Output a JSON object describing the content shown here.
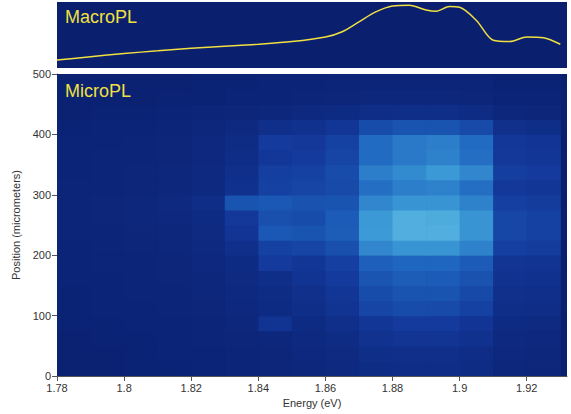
{
  "chart_data": [
    {
      "type": "line",
      "annotation": "MacroPL",
      "color": "#f0e040",
      "tick_labels": false,
      "xlim": [
        1.78,
        1.932
      ],
      "ylim": [
        0,
        1
      ],
      "x": [
        1.78,
        1.79,
        1.8,
        1.81,
        1.82,
        1.83,
        1.84,
        1.85,
        1.86,
        1.865,
        1.87,
        1.875,
        1.88,
        1.885,
        1.89,
        1.893,
        1.897,
        1.9,
        1.905,
        1.91,
        1.915,
        1.92,
        1.925,
        1.93
      ],
      "values": [
        0.12,
        0.17,
        0.22,
        0.26,
        0.3,
        0.33,
        0.36,
        0.4,
        0.47,
        0.55,
        0.7,
        0.85,
        0.94,
        0.95,
        0.88,
        0.86,
        0.93,
        0.92,
        0.72,
        0.42,
        0.4,
        0.47,
        0.46,
        0.36
      ]
    },
    {
      "type": "heatmap",
      "annotation": "MicroPL",
      "xlabel": "Energy (eV)",
      "ylabel": "Position (micrometers)",
      "grid": false,
      "xlim": [
        1.78,
        1.932
      ],
      "ylim": [
        0,
        500
      ],
      "xticks": [
        1.78,
        1.8,
        1.82,
        1.84,
        1.86,
        1.88,
        1.9,
        1.92
      ],
      "yticks": [
        0,
        100,
        200,
        300,
        400,
        500
      ],
      "x_bins": [
        1.78,
        1.79,
        1.8,
        1.81,
        1.82,
        1.83,
        1.84,
        1.85,
        1.86,
        1.87,
        1.88,
        1.89,
        1.9,
        1.91,
        1.92,
        1.93
      ],
      "y_bins": [
        0,
        25,
        50,
        75,
        100,
        125,
        150,
        175,
        200,
        225,
        250,
        275,
        300,
        325,
        350,
        375,
        400,
        425,
        450,
        475,
        500
      ],
      "color_range": [
        0,
        10
      ],
      "cells": [
        [
          0.3,
          0.3,
          0.4,
          0.4,
          0.5,
          0.6,
          0.7,
          0.8,
          1.0,
          1.3,
          1.4,
          1.4,
          1.3,
          0.8,
          0.7
        ],
        [
          0.3,
          0.3,
          0.4,
          0.5,
          0.5,
          0.6,
          0.7,
          0.9,
          1.1,
          1.5,
          1.6,
          1.6,
          1.4,
          0.9,
          0.8
        ],
        [
          0.3,
          0.4,
          0.4,
          0.5,
          0.6,
          0.7,
          0.8,
          1.0,
          1.3,
          1.9,
          2.1,
          2.1,
          1.8,
          1.0,
          0.9
        ],
        [
          0.4,
          0.4,
          0.5,
          0.5,
          0.6,
          0.8,
          2.0,
          1.2,
          1.6,
          2.3,
          2.6,
          2.6,
          2.2,
          1.2,
          1.1
        ],
        [
          0.4,
          0.5,
          0.5,
          0.6,
          0.7,
          0.9,
          1.2,
          1.5,
          2.0,
          3.2,
          3.6,
          3.5,
          3.0,
          1.5,
          1.4
        ],
        [
          0.4,
          0.5,
          0.6,
          0.6,
          0.8,
          1.0,
          1.3,
          1.7,
          2.3,
          3.6,
          4.0,
          4.0,
          3.4,
          1.7,
          1.6
        ],
        [
          0.5,
          0.5,
          0.6,
          0.7,
          0.8,
          1.1,
          1.5,
          2.0,
          2.6,
          4.1,
          4.5,
          4.4,
          3.9,
          1.9,
          1.8
        ],
        [
          0.5,
          0.6,
          0.6,
          0.7,
          0.9,
          1.2,
          2.6,
          2.3,
          2.9,
          4.6,
          5.0,
          5.0,
          4.4,
          2.1,
          2.0
        ],
        [
          0.5,
          0.6,
          0.7,
          0.8,
          1.0,
          1.6,
          3.0,
          3.2,
          3.8,
          6.4,
          7.0,
          7.0,
          6.2,
          2.9,
          2.7
        ],
        [
          0.6,
          0.6,
          0.7,
          0.8,
          1.1,
          2.2,
          4.2,
          4.0,
          4.5,
          7.3,
          8.0,
          8.0,
          7.0,
          3.3,
          3.0
        ],
        [
          0.6,
          0.7,
          0.8,
          0.9,
          1.2,
          2.5,
          3.8,
          3.6,
          4.4,
          7.2,
          8.0,
          7.9,
          7.0,
          3.3,
          3.0
        ],
        [
          0.6,
          0.7,
          0.8,
          1.0,
          1.4,
          4.0,
          4.2,
          3.9,
          4.0,
          6.4,
          7.0,
          7.0,
          6.2,
          2.9,
          2.7
        ],
        [
          0.6,
          0.6,
          0.7,
          0.8,
          1.0,
          1.8,
          3.0,
          3.2,
          3.5,
          5.4,
          6.0,
          6.2,
          5.4,
          2.5,
          2.3
        ],
        [
          0.5,
          0.6,
          0.7,
          0.8,
          1.0,
          1.6,
          2.8,
          3.0,
          3.6,
          6.0,
          6.6,
          7.2,
          6.4,
          2.8,
          2.6
        ],
        [
          0.5,
          0.6,
          0.6,
          0.7,
          0.9,
          1.4,
          2.4,
          2.6,
          3.2,
          5.2,
          5.8,
          6.2,
          5.4,
          2.5,
          2.3
        ],
        [
          0.5,
          0.5,
          0.6,
          0.7,
          0.9,
          1.3,
          2.6,
          2.5,
          3.0,
          5.2,
          5.8,
          6.0,
          5.2,
          2.4,
          2.2
        ],
        [
          0.4,
          0.5,
          0.5,
          0.6,
          0.8,
          1.0,
          1.6,
          1.8,
          2.3,
          3.6,
          4.0,
          4.0,
          3.5,
          1.7,
          1.5
        ],
        [
          0.3,
          0.4,
          0.4,
          0.5,
          0.6,
          0.7,
          0.8,
          1.0,
          1.2,
          1.4,
          1.5,
          1.5,
          1.3,
          0.8,
          0.7
        ],
        [
          0.3,
          0.3,
          0.3,
          0.4,
          0.4,
          0.5,
          0.5,
          0.6,
          0.7,
          0.8,
          0.8,
          0.8,
          0.7,
          0.5,
          0.5
        ],
        [
          0.3,
          0.3,
          0.3,
          0.3,
          0.4,
          0.4,
          0.5,
          0.5,
          0.6,
          0.6,
          0.6,
          0.6,
          0.6,
          0.4,
          0.4
        ]
      ]
    }
  ]
}
